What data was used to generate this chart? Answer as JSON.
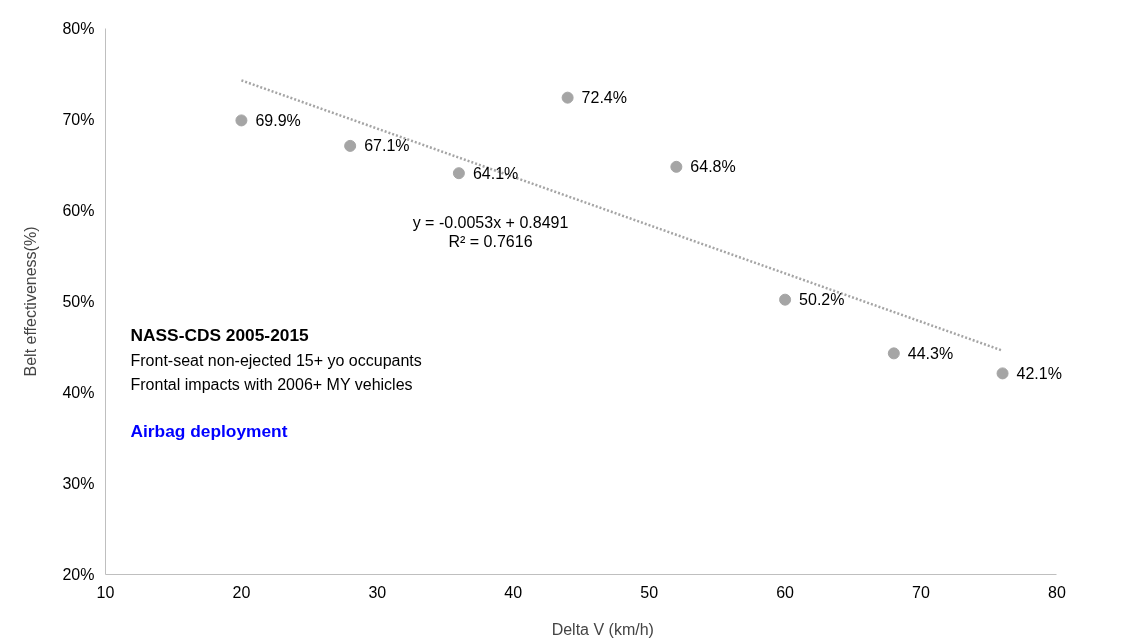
{
  "chart_data": {
    "type": "scatter",
    "xlabel": "Delta V  (km/h)",
    "ylabel": "Belt effectiveness(%)",
    "x": [
      20,
      28,
      36,
      44,
      52,
      60,
      68,
      76
    ],
    "series": [
      {
        "color": "#a5a5a5",
        "marker": "circle",
        "values": [
          69.9,
          67.1,
          64.1,
          72.4,
          64.8,
          50.2,
          44.3,
          42.1
        ],
        "value_labels": [
          "69.9%",
          "67.1%",
          "64.1%",
          "72.4%",
          "64.8%",
          "50.2%",
          "44.3%",
          "42.1%"
        ]
      },
      {
        "type": "line",
        "color": "#a5a5a5",
        "line_style": "dotted",
        "marker": "none",
        "x": [
          20,
          76
        ],
        "values": [
          74.3,
          44.6
        ]
      }
    ],
    "xlim": [
      10,
      80
    ],
    "xticks": [
      10,
      20,
      30,
      40,
      50,
      60,
      70,
      80
    ],
    "ylim": [
      20,
      80
    ],
    "yticks": [
      {
        "value": 20,
        "label": "20%"
      },
      {
        "value": 30,
        "label": "30%"
      },
      {
        "value": 40,
        "label": "40%"
      },
      {
        "value": 50,
        "label": "50%"
      },
      {
        "value": 60,
        "label": "60%"
      },
      {
        "value": 70,
        "label": "70%"
      },
      {
        "value": 80,
        "label": "80%"
      }
    ],
    "grid": false,
    "annotations": [
      "y = -0.0053x + 0.8491",
      "R² = 0.7616",
      "NASS-CDS  2005-2015",
      "Front-seat non-ejected 15+ yo occupants",
      "Frontal impacts with 2006+ MY vehicles",
      "Airbag deployment"
    ]
  }
}
